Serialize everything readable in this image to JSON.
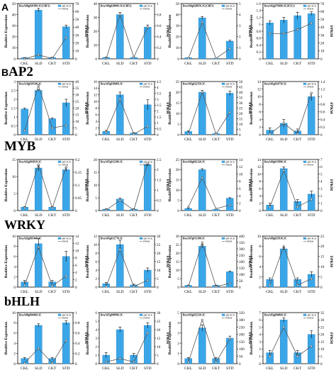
{
  "panel_labels": {
    "a": "A",
    "b": "B"
  },
  "sections": [
    "AP2",
    "MYB",
    "WRKY",
    "bHLH"
  ],
  "chart_data": [
    {
      "type": "bar",
      "row": 0,
      "col": 0,
      "title": "BraA06g028180.3C(CBF1)",
      "categories": [
        "CKL",
        "SLD",
        "CKT",
        "STD"
      ],
      "values": [
        1,
        44,
        1.2,
        29
      ],
      "errors": [
        0.2,
        1.5,
        0.2,
        1.5
      ],
      "ylim": [
        0,
        50
      ],
      "yticks": [
        0,
        10,
        20,
        30,
        40,
        50
      ],
      "ylabel": "Realtive Expression",
      "fpkm": [
        0,
        5,
        0.3,
        27
      ],
      "fpkm_lim": [
        0,
        70
      ],
      "fpkm_ticks": [
        0,
        10,
        20,
        30,
        40,
        50,
        60,
        70
      ],
      "y2label": "FPKM",
      "legend": [
        "qRT-PCR",
        "FPKM"
      ]
    },
    {
      "type": "bar",
      "row": 0,
      "col": 1,
      "title": "BraA06g028060.3C(CBF2)",
      "categories": [
        "CKL",
        "SLD",
        "CKT",
        "STD"
      ],
      "values": [
        1,
        32,
        1,
        23
      ],
      "errors": [
        0.2,
        1.5,
        0.2,
        1.5
      ],
      "ylim": [
        0,
        40
      ],
      "yticks": [
        0,
        10,
        20,
        30,
        40
      ],
      "ylabel": "Realtive Expression",
      "fpkm": [
        0,
        0.8,
        0.03,
        0.57
      ],
      "fpkm_lim": [
        0,
        1
      ],
      "fpkm_ticks": [
        0,
        0.2,
        0.4,
        0.6,
        0.8,
        1
      ],
      "y2label": "FPKM",
      "legend": [
        "qRT-PCR",
        "FPKM"
      ]
    },
    {
      "type": "bar",
      "row": 0,
      "col": 2,
      "title": "BraA06g028050.3C(CBF3)",
      "categories": [
        "CKL",
        "SLD",
        "CKT",
        "STD"
      ],
      "values": [
        1,
        37,
        0.5,
        16
      ],
      "errors": [
        0.1,
        1.2,
        0.1,
        0.8
      ],
      "ylim": [
        0,
        50
      ],
      "yticks": [
        0,
        10,
        20,
        30,
        40,
        50
      ],
      "ylabel": "Realtive Expression",
      "fpkm": [
        0.05,
        3.3,
        0.05,
        0.9
      ],
      "fpkm_lim": [
        0,
        5
      ],
      "fpkm_ticks": [
        0,
        1,
        2,
        3,
        4,
        5
      ],
      "y2label": "FPKM",
      "legend": [
        "qRT-PCR",
        "FPKM"
      ]
    },
    {
      "type": "bar",
      "row": 0,
      "col": 3,
      "title": "BraA02g076990.3C(ICE1)",
      "categories": [
        "CKL",
        "SLD",
        "CKT",
        "STD"
      ],
      "values": [
        1.04,
        1.12,
        1.25,
        1.31
      ],
      "errors": [
        0.06,
        0.08,
        0.1,
        0.05
      ],
      "ylim": [
        0,
        1.6
      ],
      "yticks": [
        0,
        0.2,
        0.4,
        0.6,
        0.8,
        1,
        1.2,
        1.4,
        1.6
      ],
      "ylabel": "Realtive Expression",
      "fpkm": [
        32,
        32,
        37,
        45
      ],
      "fpkm_lim": [
        0,
        70
      ],
      "fpkm_ticks": [
        0,
        10,
        20,
        30,
        40,
        50,
        60,
        70
      ],
      "y2label": "FPKM",
      "legend": [
        "qRT-PCR",
        "FPKM"
      ]
    },
    {
      "type": "bar",
      "row": 1,
      "col": 0,
      "title": "BraA10g019540.3C",
      "categories": [
        "CKL",
        "SLD",
        "CKT",
        "STD"
      ],
      "values": [
        1.45,
        2.5,
        0.9,
        1.8
      ],
      "errors": [
        0.05,
        0.05,
        0.05,
        0.2
      ],
      "ylim": [
        0,
        3
      ],
      "yticks": [
        0,
        0.5,
        1,
        1.5,
        2,
        2.5,
        3
      ],
      "ylabel": "Realtive Expression",
      "fpkm": [
        3,
        37,
        5,
        7
      ],
      "fpkm_lim": [
        0,
        40
      ],
      "fpkm_ticks": [
        0,
        5,
        10,
        15,
        20,
        25,
        30,
        35,
        40
      ],
      "y2label": "FPKM",
      "legend": [
        "qRT-PCR",
        "FPKM"
      ]
    },
    {
      "type": "bar",
      "row": 1,
      "col": 1,
      "title": "BraA05g038460.3C",
      "categories": [
        "CKL",
        "SLD",
        "CKT",
        "STD"
      ],
      "values": [
        1,
        12,
        0.5,
        9
      ],
      "errors": [
        0.3,
        0.8,
        0.1,
        1.5
      ],
      "ylim": [
        0,
        16
      ],
      "yticks": [
        0,
        2,
        4,
        6,
        8,
        10,
        12,
        14,
        16
      ],
      "ylabel": "Realtive Expression",
      "fpkm": [
        0.2,
        3,
        0.05,
        0.7
      ],
      "fpkm_lim": [
        0,
        4.5
      ],
      "fpkm_ticks": [
        0,
        0.5,
        1,
        1.5,
        2,
        2.5,
        3,
        3.5,
        4,
        4.5
      ],
      "y2label": "FPKM",
      "legend": [
        "qRT-PCR",
        "FPKM"
      ]
    },
    {
      "type": "bar",
      "row": 1,
      "col": 2,
      "title": "BraA05g022350.3C",
      "categories": [
        "CKL",
        "SLD",
        "CKT",
        "STD"
      ],
      "values": [
        1.5,
        20,
        0.5,
        19.5
      ],
      "errors": [
        0.3,
        0.8,
        0.2,
        1
      ],
      "ylim": [
        0,
        25
      ],
      "yticks": [
        0,
        5,
        10,
        15,
        20,
        25
      ],
      "ylabel": "Realtive Expression",
      "fpkm": [
        1,
        40,
        0.5,
        21
      ],
      "fpkm_lim": [
        0,
        50
      ],
      "fpkm_ticks": [
        0,
        5,
        10,
        15,
        20,
        25,
        30,
        35,
        40,
        45,
        50
      ],
      "y2label": "FPKM",
      "legend": [
        "qRT-PCR",
        "FPKM"
      ]
    },
    {
      "type": "bar",
      "row": 1,
      "col": 3,
      "title": "BraA01g034750.3C",
      "categories": [
        "CKL",
        "SLD",
        "CKT",
        "STD"
      ],
      "values": [
        1.2,
        3,
        1,
        10
      ],
      "errors": [
        0.6,
        1,
        0.5,
        1
      ],
      "ylim": [
        0,
        14
      ],
      "yticks": [
        0,
        2,
        4,
        6,
        8,
        10,
        12,
        14
      ],
      "ylabel": "Realtive Expression",
      "fpkm": [
        0.02,
        0.3,
        0.02,
        1.1
      ],
      "fpkm_lim": [
        0,
        1.4
      ],
      "fpkm_ticks": [
        0,
        0.2,
        0.4,
        0.6,
        0.8,
        1,
        1.2,
        1.4
      ],
      "y2label": "FPKM",
      "legend": [
        "qRT-PCR",
        "FPKM"
      ]
    },
    {
      "type": "bar",
      "row": 2,
      "col": 0,
      "title": "BraA02g003810.3C",
      "categories": [
        "CKL",
        "SLD",
        "CKT",
        "STD"
      ],
      "values": [
        1,
        12.5,
        1,
        12
      ],
      "errors": [
        0.2,
        0.8,
        0.2,
        0.5
      ],
      "ylim": [
        0,
        15
      ],
      "yticks": [
        0,
        5,
        10,
        15
      ],
      "ylabel": "Realtive Expression",
      "fpkm": [
        0.01,
        0.18,
        0.01,
        0.17
      ],
      "fpkm_lim": [
        0,
        0.2
      ],
      "fpkm_ticks": [
        0,
        0.05,
        0.1,
        0.15,
        0.2
      ],
      "y2label": "FPKM",
      "legend": [
        "qRT-PCR",
        "FPKM"
      ]
    },
    {
      "type": "bar",
      "row": 2,
      "col": 1,
      "title": "BraA07g012390.3C",
      "categories": [
        "CKL",
        "SLD",
        "CKT",
        "STD"
      ],
      "values": [
        0.5,
        4.5,
        0.5,
        18
      ],
      "errors": [
        0.2,
        0.3,
        0.2,
        0.5
      ],
      "ylim": [
        0,
        20
      ],
      "yticks": [
        0,
        5,
        10,
        15,
        20
      ],
      "ylabel": "Realtive Expression",
      "fpkm": [
        0.02,
        0.5,
        0.02,
        2.3
      ],
      "fpkm_lim": [
        0,
        2.5
      ],
      "fpkm_ticks": [
        0,
        0.5,
        1,
        1.5,
        2,
        2.5
      ],
      "y2label": "FPKM",
      "legend": [
        "qRT-PCR",
        "FPKM"
      ]
    },
    {
      "type": "bar",
      "row": 2,
      "col": 2,
      "title": "BraA06g002120.3C",
      "categories": [
        "CKL",
        "SLD",
        "CKT",
        "STD"
      ],
      "values": [
        1,
        20,
        0.5,
        6
      ],
      "errors": [
        0.2,
        0.5,
        0.2,
        0.3
      ],
      "ylim": [
        0,
        25
      ],
      "yticks": [
        0,
        5,
        10,
        15,
        20,
        25
      ],
      "ylabel": "Realtive Expression",
      "fpkm": [
        1,
        9,
        0.5,
        1.5
      ],
      "fpkm_lim": [
        0,
        14
      ],
      "fpkm_ticks": [
        0,
        2,
        4,
        6,
        8,
        10,
        12,
        14
      ],
      "y2label": "FPKM",
      "legend": [
        "qRT-PCR",
        "FPKM"
      ]
    },
    {
      "type": "bar",
      "row": 2,
      "col": 3,
      "title": "BraA09g015880.3C",
      "categories": [
        "CKL",
        "SLD",
        "CKT",
        "STD"
      ],
      "values": [
        1.5,
        11.5,
        2.5,
        4.5
      ],
      "errors": [
        0.5,
        0.5,
        0.5,
        0.8
      ],
      "ylim": [
        0,
        14
      ],
      "yticks": [
        0,
        2,
        4,
        6,
        8,
        10,
        12,
        14
      ],
      "ylabel": "Realtive Expression",
      "fpkm": [
        0.5,
        5.5,
        0.5,
        1.5
      ],
      "fpkm_lim": [
        0,
        7
      ],
      "fpkm_ticks": [
        0,
        1,
        2,
        3,
        4,
        5,
        6,
        7
      ],
      "y2label": "FPKM",
      "legend": [
        "qRT-PCR",
        "FPKM"
      ]
    },
    {
      "type": "bar",
      "row": 3,
      "col": 0,
      "title": "BraA02g005440.3C",
      "categories": [
        "CKL",
        "SLD",
        "CKT",
        "STD"
      ],
      "values": [
        1,
        8.5,
        1,
        6
      ],
      "errors": [
        0.3,
        1,
        0.3,
        1
      ],
      "ylim": [
        0,
        10
      ],
      "yticks": [
        0,
        2,
        4,
        6,
        8,
        10
      ],
      "ylabel": "Realtive Expression",
      "fpkm": [
        0.5,
        11,
        0.3,
        3
      ],
      "fpkm_lim": [
        0,
        14
      ],
      "fpkm_ticks": [
        0,
        2,
        4,
        6,
        8,
        10,
        12,
        14
      ],
      "y2label": "FPKM",
      "legend": [
        "qRT-PCR",
        "FPKM"
      ]
    },
    {
      "type": "bar",
      "row": 3,
      "col": 1,
      "title": "BraA05g012770.3C",
      "categories": [
        "CKL",
        "SLD",
        "CKT",
        "STD"
      ],
      "values": [
        0.8,
        10,
        0.5,
        4
      ],
      "errors": [
        0.3,
        1,
        0.2,
        0.5
      ],
      "ylim": [
        0,
        12
      ],
      "yticks": [
        0,
        2,
        4,
        6,
        8,
        10,
        12
      ],
      "ylabel": "Realtive Expression",
      "fpkm": [
        0.3,
        22,
        0.3,
        4
      ],
      "fpkm_lim": [
        0,
        30
      ],
      "fpkm_ticks": [
        0,
        5,
        10,
        15,
        20,
        25,
        30
      ],
      "y2label": "FPKM",
      "legend": [
        "qRT-PCR",
        "FPKM"
      ]
    },
    {
      "type": "bar",
      "row": 3,
      "col": 2,
      "title": "BraA07g011380.3C",
      "categories": [
        "CKL",
        "SLD",
        "CKT",
        "STD"
      ],
      "values": [
        1,
        24,
        1,
        9
      ],
      "errors": [
        0.2,
        1,
        0.2,
        0.5
      ],
      "ylim": [
        0,
        30
      ],
      "yticks": [
        0,
        5,
        10,
        15,
        20,
        25,
        30
      ],
      "ylabel": "Realtive Expression",
      "fpkm": [
        5,
        350,
        3,
        30
      ],
      "fpkm_lim": [
        0,
        400
      ],
      "fpkm_ticks": [
        0,
        50,
        100,
        150,
        200,
        250,
        300,
        350,
        400
      ],
      "y2label": "FPKM",
      "legend": [
        "qRT-PCR",
        "FPKM"
      ]
    },
    {
      "type": "bar",
      "row": 3,
      "col": 3,
      "title": "BraA09g025910.3C",
      "categories": [
        "CKL",
        "SLD",
        "CKT",
        "STD"
      ],
      "values": [
        1.5,
        7.5,
        1.5,
        2.5
      ],
      "errors": [
        0.3,
        0.3,
        0.3,
        0.5
      ],
      "ylim": [
        0,
        10
      ],
      "yticks": [
        0,
        2,
        4,
        6,
        8,
        10
      ],
      "ylabel": "Realtive Expression",
      "fpkm": [
        1,
        20,
        1,
        4
      ],
      "fpkm_lim": [
        0,
        25
      ],
      "fpkm_ticks": [
        0,
        5,
        10,
        15,
        20,
        25
      ],
      "y2label": "FPKM",
      "legend": [
        "qRT-PCR",
        "FPKM"
      ]
    },
    {
      "type": "bar",
      "row": 4,
      "col": 0,
      "title": "BraA08g004460.3C",
      "categories": [
        "CKL",
        "SLD",
        "CKT",
        "STD"
      ],
      "values": [
        1,
        7.5,
        1,
        8
      ],
      "errors": [
        0.2,
        0.3,
        0.2,
        0.4
      ],
      "ylim": [
        0,
        10
      ],
      "yticks": [
        0,
        2,
        4,
        6,
        8,
        10
      ],
      "ylabel": "Realtive Expression",
      "fpkm": [
        0.01,
        0.3,
        0.01,
        0.45
      ],
      "fpkm_lim": [
        0,
        1
      ],
      "fpkm_ticks": [
        0,
        0.2,
        0.4,
        0.6,
        0.8,
        1
      ],
      "y2label": "FPKM",
      "legend": [
        "qRT-PCR",
        "FPKM"
      ]
    },
    {
      "type": "bar",
      "row": 4,
      "col": 1,
      "title": "BraA07g009990.3C",
      "categories": [
        "CKL",
        "SLD",
        "CKT",
        "STD"
      ],
      "values": [
        1,
        4,
        1,
        4.5
      ],
      "errors": [
        0.3,
        0.3,
        0.2,
        0.3
      ],
      "ylim": [
        0,
        6
      ],
      "yticks": [
        0,
        1,
        2,
        3,
        4,
        5,
        6
      ],
      "ylabel": "Realtive Expression",
      "fpkm": [
        1,
        3,
        1,
        18
      ],
      "fpkm_lim": [
        0,
        30
      ],
      "fpkm_ticks": [
        0,
        5,
        10,
        15,
        20,
        25,
        30
      ],
      "y2label": "FPKM",
      "legend": [
        "qRT-PCR",
        "FPKM"
      ]
    },
    {
      "type": "bar",
      "row": 4,
      "col": 2,
      "title": "BraA03g025230.3C",
      "categories": [
        "CKL",
        "SLD",
        "CKT",
        "STD"
      ],
      "values": [
        0.5,
        3.5,
        0.5,
        2.5
      ],
      "errors": [
        0.1,
        0.3,
        0.1,
        0.2
      ],
      "ylim": [
        0,
        5
      ],
      "yticks": [
        0,
        1,
        2,
        3,
        4,
        5
      ],
      "ylabel": "Realtive Expression",
      "fpkm": [
        10,
        300,
        10,
        170
      ],
      "fpkm_lim": [
        0,
        350
      ],
      "fpkm_ticks": [
        0,
        50,
        100,
        150,
        200,
        250,
        300,
        350
      ],
      "y2label": "FPKM",
      "legend": [
        "qRT-PCR",
        "FPKM"
      ]
    },
    {
      "type": "bar",
      "row": 4,
      "col": 3,
      "title": "BraA03g004860.3C",
      "categories": [
        "CKL",
        "SLD",
        "CKT",
        "STD"
      ],
      "values": [
        1.5,
        6,
        1.5,
        4
      ],
      "errors": [
        0.3,
        0.3,
        0.3,
        0.5
      ],
      "ylim": [
        0,
        7
      ],
      "yticks": [
        0,
        1,
        2,
        3,
        4,
        5,
        6,
        7
      ],
      "ylabel": "Realtive Expression",
      "fpkm": [
        5,
        25,
        5,
        12
      ],
      "fpkm_lim": [
        0,
        35
      ],
      "fpkm_ticks": [
        0,
        5,
        10,
        15,
        20,
        25,
        30,
        35
      ],
      "y2label": "FPKM",
      "legend": [
        "qRT-PCR",
        "FPKM"
      ]
    }
  ]
}
